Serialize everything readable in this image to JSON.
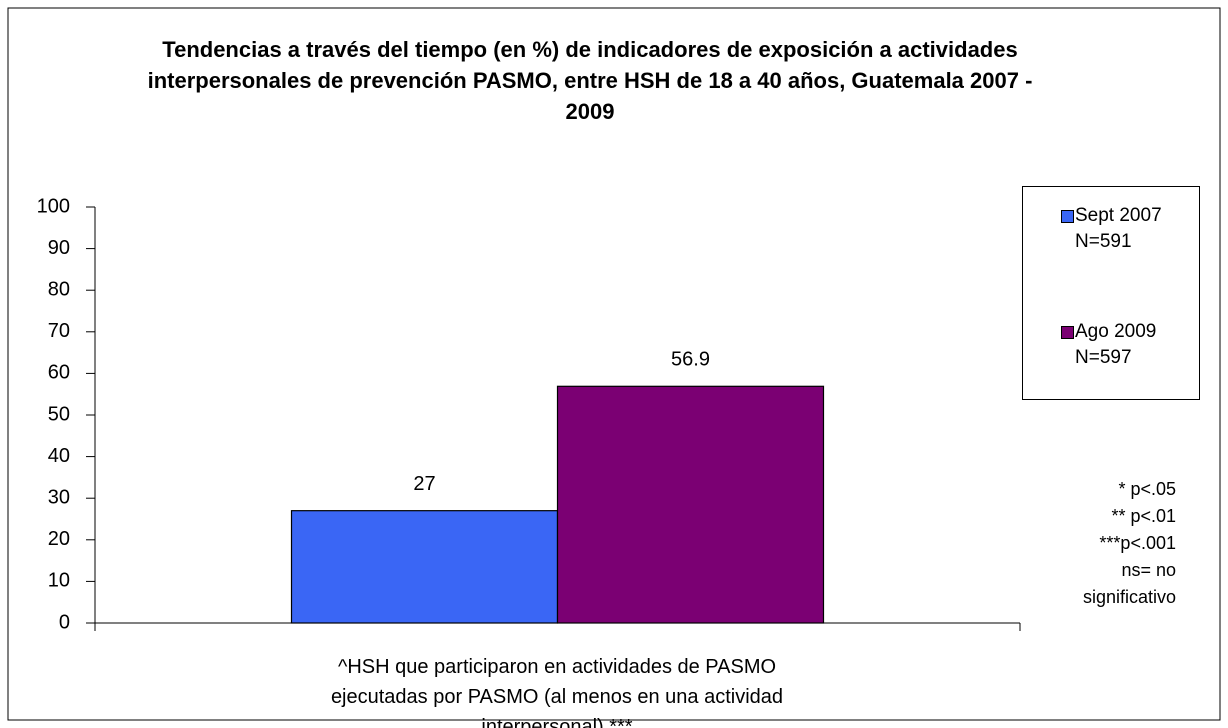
{
  "chart_data": {
    "type": "bar",
    "title": "Tendencias a través del tiempo (en %) de indicadores de exposición a actividades interpersonales de prevención PASMO, entre HSH de 18 a 40 años, Guatemala 2007 - 2009",
    "categories": [
      "^HSH que participaron en actividades de PASMO ejecutadas por PASMO (al menos en una actividad interpersonal) ***"
    ],
    "series": [
      {
        "name": "Sept 2007 N=591",
        "color": "#3a66f5",
        "values": [
          27
        ]
      },
      {
        "name": "Ago 2009 N=597",
        "color": "#7b0073",
        "values": [
          56.9
        ]
      }
    ],
    "ylim": [
      0,
      100
    ],
    "yticks": [
      0,
      10,
      20,
      30,
      40,
      50,
      60,
      70,
      80,
      90,
      100
    ],
    "grid": false,
    "legend": "right",
    "annotations": [
      "* p<.05",
      "** p<.01",
      "***p<.001",
      "ns= no significativo"
    ]
  }
}
